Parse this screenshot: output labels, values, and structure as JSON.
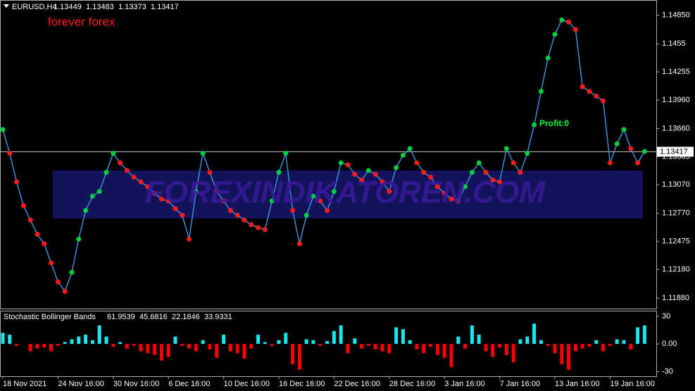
{
  "chart_data": [
    {
      "type": "line",
      "symbol": "EURUSD,H4",
      "ohlc": [
        1.13449,
        1.13483,
        1.13373,
        1.13417
      ],
      "annotations": [
        "forever forex",
        "Profit:0",
        "FOREXINDIKATOREN.COM"
      ],
      "series": [
        {
          "name": "EURUSD",
          "color": "#3a8fd8",
          "values": [
            1.1365,
            1.134,
            1.131,
            1.1285,
            1.127,
            1.1255,
            1.1245,
            1.1225,
            1.1205,
            1.1195,
            1.1215,
            1.125,
            1.128,
            1.1295,
            1.13,
            1.132,
            1.134,
            1.133,
            1.1322,
            1.1315,
            1.131,
            1.1305,
            1.1298,
            1.1292,
            1.129,
            1.1282,
            1.1275,
            1.125,
            1.13,
            1.134,
            1.132,
            1.13,
            1.129,
            1.128,
            1.1275,
            1.127,
            1.1265,
            1.1262,
            1.126,
            1.129,
            1.132,
            1.134,
            1.128,
            1.1245,
            1.1275,
            1.1295,
            1.129,
            1.128,
            1.13,
            1.133,
            1.1328,
            1.1318,
            1.1312,
            1.1322,
            1.1318,
            1.131,
            1.13,
            1.1325,
            1.1338,
            1.1345,
            1.133,
            1.132,
            1.1315,
            1.1305,
            1.1298,
            1.1292,
            1.129,
            1.1305,
            1.132,
            1.133,
            1.132,
            1.1312,
            1.131,
            1.1345,
            1.133,
            1.132,
            1.134,
            1.137,
            1.1405,
            1.144,
            1.1465,
            1.148,
            1.1478,
            1.147,
            1.141,
            1.1405,
            1.14,
            1.1395,
            1.133,
            1.135,
            1.1365,
            1.1345,
            1.133,
            1.1342
          ]
        }
      ],
      "up_color": "#00d040",
      "down_color": "#ff1a1a",
      "last_price": 1.13417,
      "ylim": [
        1.1177,
        1.1501
      ],
      "yticks": [
        {
          "value": 1.1485,
          "label": "1.14850"
        },
        1.1455,
        1.14255,
        {
          "value": 1.1396,
          "label": "1.13960"
        },
        {
          "value": 1.1366,
          "label": "1.13660"
        },
        1.13365,
        {
          "value": 1.1307,
          "label": "1.13070"
        },
        {
          "value": 1.1277,
          "label": "1.12770"
        },
        1.12475,
        {
          "value": 1.1218,
          "label": "1.12180"
        },
        {
          "value": 1.1188,
          "label": "1.11880"
        }
      ]
    },
    {
      "type": "bar",
      "indicator_name": "Stochastic Bollinger Bands",
      "indicator_values": [
        61.9539,
        45.6816,
        22.1846,
        33.9331
      ],
      "pos_color": "#19e6f0",
      "neg_color": "#ff0000",
      "categories": [
        "18 Nov 2021",
        null,
        null,
        null,
        null,
        null,
        null,
        null,
        "24 Nov 16:00",
        null,
        null,
        null,
        null,
        null,
        null,
        null,
        "30 Nov 16:00",
        null,
        null,
        null,
        null,
        null,
        null,
        null,
        "6 Dec 16:00",
        null,
        null,
        null,
        null,
        null,
        null,
        null,
        "10 Dec 16:00",
        null,
        null,
        null,
        null,
        null,
        null,
        null,
        "16 Dec 16:00",
        null,
        null,
        null,
        null,
        null,
        null,
        null,
        "22 Dec 16:00",
        null,
        null,
        null,
        null,
        null,
        null,
        null,
        "28 Dec 16:00",
        null,
        null,
        null,
        null,
        null,
        null,
        null,
        "3 Jan 16:00",
        null,
        null,
        null,
        null,
        null,
        null,
        null,
        "7 Jan 16:00",
        null,
        null,
        null,
        null,
        null,
        null,
        null,
        "13 Jan 16:00",
        null,
        null,
        null,
        null,
        null,
        null,
        null,
        "19 Jan 16:00",
        null,
        null,
        null,
        null,
        null
      ],
      "values": [
        12,
        10,
        -2,
        0,
        -8,
        -5,
        -4,
        -8,
        -2,
        2,
        5,
        8,
        10,
        4,
        20,
        8,
        -3,
        2,
        -5,
        -2,
        -8,
        -10,
        -12,
        -18,
        -14,
        8,
        -2,
        -5,
        -8,
        4,
        -6,
        -15,
        10,
        -8,
        -10,
        -16,
        -5,
        10,
        2,
        -2,
        4,
        12,
        -22,
        -28,
        5,
        4,
        -2,
        3,
        14,
        20,
        -10,
        6,
        -5,
        -2,
        -6,
        -8,
        -10,
        18,
        16,
        4,
        -6,
        -10,
        -3,
        -12,
        -15,
        -25,
        8,
        -5,
        20,
        10,
        -8,
        -14,
        -4,
        -12,
        -20,
        5,
        8,
        22,
        4,
        -2,
        -10,
        -22,
        -28,
        -8,
        -5,
        -3,
        4,
        -8,
        -2,
        5,
        4,
        -6,
        18,
        20
      ],
      "ylim": [
        -35,
        36
      ],
      "yticks": [
        30,
        {
          "value": 0,
          "label": "0.00"
        },
        -30
      ]
    }
  ]
}
